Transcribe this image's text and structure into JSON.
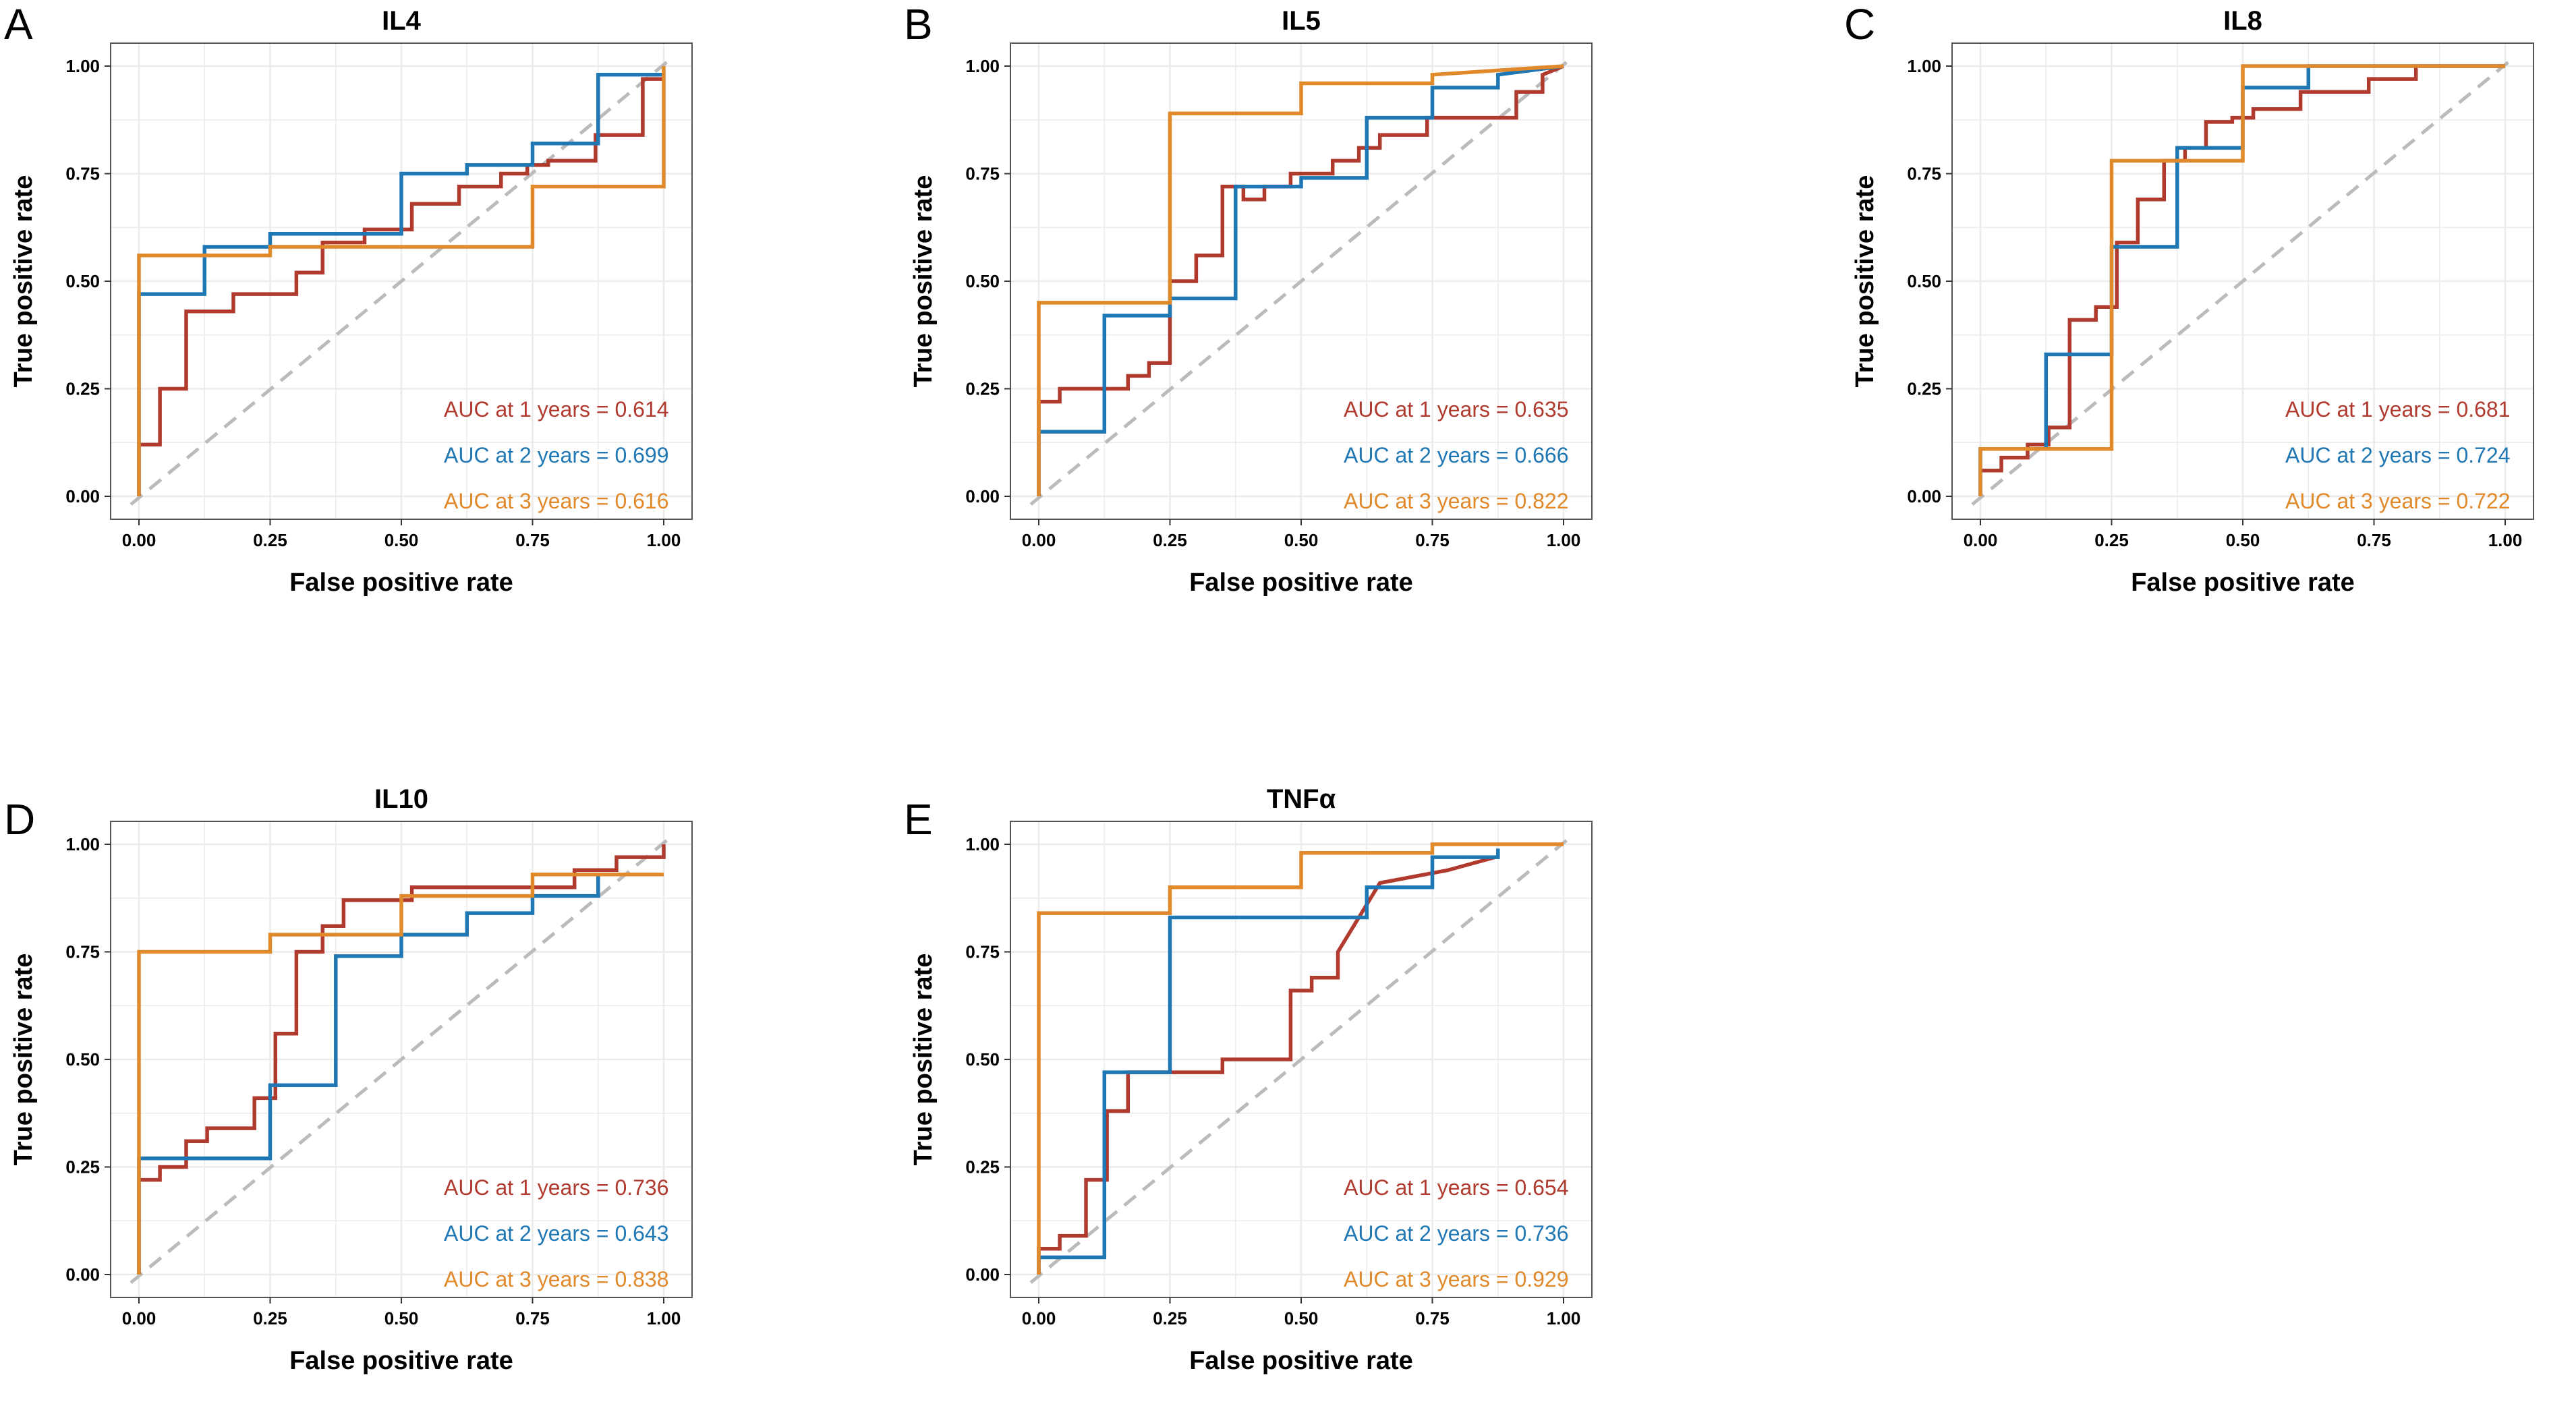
{
  "colors": {
    "year1": "#B03A2E",
    "year2": "#1F77B4",
    "year3": "#E08A2C",
    "diag": "#BBBBBB",
    "grid": "#EBEBEB",
    "frame": "#555555"
  },
  "chart_data": [
    {
      "type": "line",
      "letter": "A",
      "title": "IL4",
      "xlabel": "False positive rate",
      "ylabel": "True positive rate",
      "xlim": [
        0,
        1
      ],
      "ylim": [
        0,
        1
      ],
      "ticks": [
        0,
        0.25,
        0.5,
        0.75,
        1
      ],
      "tick_labels": [
        "0.00",
        "0.25",
        "0.50",
        "0.75",
        "1.00"
      ],
      "legend_position": "bottom-right",
      "series": [
        {
          "name": "1 years",
          "color_key": "year1",
          "label": "AUC at 1 years = 0.614",
          "x": [
            0,
            0,
            0.04,
            0.04,
            0.09,
            0.09,
            0.18,
            0.18,
            0.3,
            0.3,
            0.35,
            0.35,
            0.43,
            0.43,
            0.52,
            0.52,
            0.61,
            0.61,
            0.69,
            0.69,
            0.74,
            0.74,
            0.78,
            0.78,
            0.87,
            0.87,
            0.96,
            0.96,
            1.0
          ],
          "y": [
            0,
            0.12,
            0.12,
            0.25,
            0.25,
            0.43,
            0.43,
            0.47,
            0.47,
            0.52,
            0.52,
            0.59,
            0.59,
            0.62,
            0.62,
            0.68,
            0.68,
            0.72,
            0.72,
            0.75,
            0.75,
            0.77,
            0.77,
            0.78,
            0.78,
            0.84,
            0.84,
            0.97,
            0.97
          ]
        },
        {
          "name": "2 years",
          "color_key": "year2",
          "label": "AUC at 2 years = 0.699",
          "x": [
            0,
            0,
            0.125,
            0.125,
            0.25,
            0.25,
            0.5,
            0.5,
            0.625,
            0.625,
            0.75,
            0.75,
            0.875,
            0.875,
            1.0
          ],
          "y": [
            0,
            0.47,
            0.47,
            0.58,
            0.58,
            0.61,
            0.61,
            0.75,
            0.75,
            0.77,
            0.77,
            0.82,
            0.82,
            0.98,
            0.98
          ]
        },
        {
          "name": "3 years",
          "color_key": "year3",
          "label": "AUC at 3 years = 0.616",
          "x": [
            0,
            0,
            0.25,
            0.25,
            0.75,
            0.75,
            1.0,
            1.0
          ],
          "y": [
            0,
            0.56,
            0.56,
            0.58,
            0.58,
            0.72,
            0.72,
            1.0
          ]
        }
      ]
    },
    {
      "type": "line",
      "letter": "B",
      "title": "IL5",
      "xlabel": "False positive rate",
      "ylabel": "True positive rate",
      "xlim": [
        0,
        1
      ],
      "ylim": [
        0,
        1
      ],
      "ticks": [
        0,
        0.25,
        0.5,
        0.75,
        1
      ],
      "tick_labels": [
        "0.00",
        "0.25",
        "0.50",
        "0.75",
        "1.00"
      ],
      "legend_position": "bottom-right",
      "series": [
        {
          "name": "1 years",
          "color_key": "year1",
          "label": "AUC at 1 years = 0.635",
          "x": [
            0,
            0,
            0.04,
            0.04,
            0.17,
            0.17,
            0.21,
            0.21,
            0.25,
            0.25,
            0.3,
            0.3,
            0.35,
            0.35,
            0.39,
            0.39,
            0.43,
            0.43,
            0.48,
            0.48,
            0.56,
            0.56,
            0.61,
            0.61,
            0.65,
            0.65,
            0.74,
            0.74,
            0.91,
            0.91,
            0.96,
            0.96,
            1.0
          ],
          "y": [
            0,
            0.22,
            0.22,
            0.25,
            0.25,
            0.28,
            0.28,
            0.31,
            0.31,
            0.5,
            0.5,
            0.56,
            0.56,
            0.72,
            0.72,
            0.69,
            0.69,
            0.72,
            0.72,
            0.75,
            0.75,
            0.78,
            0.78,
            0.81,
            0.81,
            0.84,
            0.84,
            0.88,
            0.88,
            0.94,
            0.94,
            0.98,
            1.0
          ]
        },
        {
          "name": "2 years",
          "color_key": "year2",
          "label": "AUC at 2 years = 0.666",
          "x": [
            0,
            0,
            0.125,
            0.125,
            0.25,
            0.25,
            0.375,
            0.375,
            0.5,
            0.5,
            0.625,
            0.625,
            0.75,
            0.75,
            0.875,
            0.875,
            1.0
          ],
          "y": [
            0,
            0.15,
            0.15,
            0.42,
            0.42,
            0.46,
            0.46,
            0.72,
            0.72,
            0.74,
            0.74,
            0.88,
            0.88,
            0.95,
            0.95,
            0.98,
            1.0
          ]
        },
        {
          "name": "3 years",
          "color_key": "year3",
          "label": "AUC at 3 years = 0.822",
          "x": [
            0,
            0,
            0.25,
            0.25,
            0.5,
            0.5,
            0.75,
            0.75,
            1.0
          ],
          "y": [
            0,
            0.45,
            0.45,
            0.89,
            0.89,
            0.96,
            0.96,
            0.98,
            1.0
          ]
        }
      ]
    },
    {
      "type": "line",
      "letter": "C",
      "title": "IL8",
      "xlabel": "False positive rate",
      "ylabel": "True positive rate",
      "xlim": [
        0,
        1
      ],
      "ylim": [
        0,
        1
      ],
      "ticks": [
        0,
        0.25,
        0.5,
        0.75,
        1
      ],
      "tick_labels": [
        "0.00",
        "0.25",
        "0.50",
        "0.75",
        "1.00"
      ],
      "legend_position": "bottom-right",
      "series": [
        {
          "name": "1 years",
          "color_key": "year1",
          "label": "AUC at 1 years = 0.681",
          "x": [
            0,
            0,
            0.04,
            0.04,
            0.09,
            0.09,
            0.13,
            0.13,
            0.17,
            0.17,
            0.22,
            0.22,
            0.26,
            0.26,
            0.3,
            0.3,
            0.35,
            0.35,
            0.39,
            0.39,
            0.43,
            0.43,
            0.48,
            0.48,
            0.52,
            0.52,
            0.61,
            0.61,
            0.74,
            0.74,
            0.83,
            0.83,
            1.0
          ],
          "y": [
            0,
            0.06,
            0.06,
            0.09,
            0.09,
            0.12,
            0.12,
            0.16,
            0.16,
            0.41,
            0.41,
            0.44,
            0.44,
            0.59,
            0.59,
            0.69,
            0.69,
            0.78,
            0.78,
            0.81,
            0.81,
            0.87,
            0.87,
            0.88,
            0.88,
            0.9,
            0.9,
            0.94,
            0.94,
            0.97,
            0.97,
            1.0,
            1.0
          ]
        },
        {
          "name": "2 years",
          "color_key": "year2",
          "label": "AUC at 2 years = 0.724",
          "x": [
            0,
            0,
            0.125,
            0.125,
            0.25,
            0.25,
            0.375,
            0.375,
            0.5,
            0.5,
            0.625,
            0.625,
            1.0
          ],
          "y": [
            0,
            0.11,
            0.11,
            0.33,
            0.33,
            0.58,
            0.58,
            0.81,
            0.81,
            0.95,
            0.95,
            1.0,
            1.0
          ]
        },
        {
          "name": "3 years",
          "color_key": "year3",
          "label": "AUC at 3 years = 0.722",
          "x": [
            0,
            0,
            0.25,
            0.25,
            0.5,
            0.5,
            1.0
          ],
          "y": [
            0,
            0.11,
            0.11,
            0.78,
            0.78,
            1.0,
            1.0
          ]
        }
      ]
    },
    {
      "type": "line",
      "letter": "D",
      "title": "IL10",
      "xlabel": "False positive rate",
      "ylabel": "True positive rate",
      "xlim": [
        0,
        1
      ],
      "ylim": [
        0,
        1
      ],
      "ticks": [
        0,
        0.25,
        0.5,
        0.75,
        1
      ],
      "tick_labels": [
        "0.00",
        "0.25",
        "0.50",
        "0.75",
        "1.00"
      ],
      "legend_position": "bottom-right",
      "series": [
        {
          "name": "1 years",
          "color_key": "year1",
          "label": "AUC at 1 years = 0.736",
          "x": [
            0,
            0,
            0.04,
            0.04,
            0.09,
            0.09,
            0.13,
            0.13,
            0.22,
            0.22,
            0.26,
            0.26,
            0.3,
            0.3,
            0.35,
            0.35,
            0.39,
            0.39,
            0.52,
            0.52,
            0.83,
            0.83,
            0.91,
            0.91,
            1.0,
            1.0
          ],
          "y": [
            0,
            0.22,
            0.22,
            0.25,
            0.25,
            0.31,
            0.31,
            0.34,
            0.34,
            0.41,
            0.41,
            0.56,
            0.56,
            0.75,
            0.75,
            0.81,
            0.81,
            0.87,
            0.87,
            0.9,
            0.9,
            0.94,
            0.94,
            0.97,
            0.97,
            1.0
          ]
        },
        {
          "name": "2 years",
          "color_key": "year2",
          "label": "AUC at 2 years = 0.643",
          "x": [
            0,
            0,
            0.25,
            0.25,
            0.375,
            0.375,
            0.5,
            0.5,
            0.625,
            0.625,
            0.75,
            0.75,
            0.875,
            0.875,
            1.0
          ],
          "y": [
            0,
            0.27,
            0.27,
            0.44,
            0.44,
            0.74,
            0.74,
            0.79,
            0.79,
            0.84,
            0.84,
            0.88,
            0.88,
            0.93,
            0.93
          ]
        },
        {
          "name": "3 years",
          "color_key": "year3",
          "label": "AUC at 3 years = 0.838",
          "x": [
            0,
            0,
            0.25,
            0.25,
            0.5,
            0.5,
            0.75,
            0.75,
            1.0
          ],
          "y": [
            0,
            0.75,
            0.75,
            0.79,
            0.79,
            0.88,
            0.88,
            0.93,
            0.93
          ]
        }
      ]
    },
    {
      "type": "line",
      "letter": "E",
      "title": "TNFα",
      "xlabel": "False positive rate",
      "ylabel": "True positive rate",
      "xlim": [
        0,
        1
      ],
      "ylim": [
        0,
        1
      ],
      "ticks": [
        0,
        0.25,
        0.5,
        0.75,
        1
      ],
      "tick_labels": [
        "0.00",
        "0.25",
        "0.50",
        "0.75",
        "1.00"
      ],
      "legend_position": "bottom-right",
      "series": [
        {
          "name": "1 years",
          "color_key": "year1",
          "label": "AUC at 1 years = 0.654",
          "x": [
            0,
            0,
            0.04,
            0.04,
            0.09,
            0.09,
            0.13,
            0.13,
            0.17,
            0.17,
            0.35,
            0.35,
            0.48,
            0.48,
            0.52,
            0.52,
            0.57,
            0.57,
            0.57,
            0.65,
            0.65,
            0.78,
            0.78,
            0.87,
            0.87
          ],
          "y": [
            0,
            0.06,
            0.06,
            0.09,
            0.09,
            0.22,
            0.22,
            0.38,
            0.38,
            0.47,
            0.47,
            0.5,
            0.5,
            0.66,
            0.66,
            0.69,
            0.69,
            0.75,
            0.75,
            0.91,
            0.91,
            0.94,
            0.94,
            0.97,
            0.97
          ]
        },
        {
          "name": "2 years",
          "color_key": "year2",
          "label": "AUC at 2 years = 0.736",
          "x": [
            0,
            0,
            0.125,
            0.125,
            0.25,
            0.25,
            0.625,
            0.625,
            0.75,
            0.75,
            0.875,
            0.875
          ],
          "y": [
            0,
            0.04,
            0.04,
            0.47,
            0.47,
            0.83,
            0.83,
            0.9,
            0.9,
            0.97,
            0.97,
            0.99
          ]
        },
        {
          "name": "3 years",
          "color_key": "year3",
          "label": "AUC at 3 years = 0.929",
          "x": [
            0,
            0,
            0.25,
            0.25,
            0.5,
            0.5,
            0.75,
            0.75,
            1.0
          ],
          "y": [
            0,
            0.84,
            0.84,
            0.9,
            0.9,
            0.98,
            0.98,
            1.0,
            1.0
          ]
        }
      ]
    }
  ]
}
